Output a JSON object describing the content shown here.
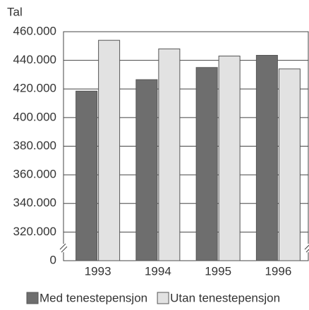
{
  "chart_data": {
    "type": "bar",
    "y_label": "Tal",
    "categories": [
      "1993",
      "1994",
      "1995",
      "1996"
    ],
    "series": [
      {
        "name": "Med tenestepensjon",
        "color": "#6e6e6e",
        "values": [
          418500,
          426500,
          435000,
          443500
        ]
      },
      {
        "name": "Utan tenestepensjon",
        "color": "#e2e2e2",
        "values": [
          454000,
          448000,
          443000,
          434000
        ]
      }
    ],
    "ylim": [
      0,
      460000
    ],
    "axis_break": [
      0,
      300000
    ],
    "yticks": [
      {
        "value": 0,
        "label": "0"
      },
      {
        "value": 320000,
        "label": "320.000"
      },
      {
        "value": 340000,
        "label": "340.000"
      },
      {
        "value": 360000,
        "label": "360.000"
      },
      {
        "value": 380000,
        "label": "380.000"
      },
      {
        "value": 400000,
        "label": "400.000"
      },
      {
        "value": 420000,
        "label": "420.000"
      },
      {
        "value": 440000,
        "label": "440.000"
      },
      {
        "value": 460000,
        "label": "460.000"
      }
    ],
    "grid": true
  }
}
